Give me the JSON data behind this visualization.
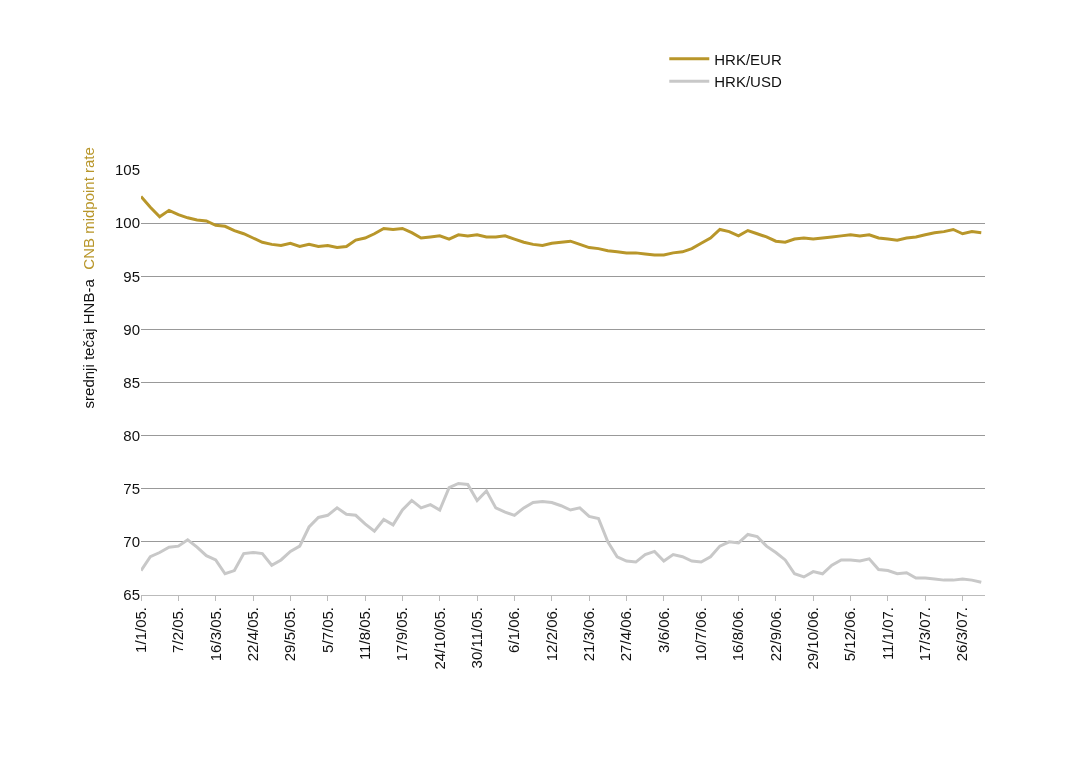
{
  "chart_data": {
    "type": "line",
    "ylabel": "srednji tečaj HNB-a",
    "annotations": [
      "CNB midpoint rate"
    ],
    "categories": [
      "1/1/05.",
      null,
      null,
      null,
      "7/2/05.",
      null,
      null,
      null,
      "16/3/05.",
      null,
      null,
      null,
      "22/4/05.",
      null,
      null,
      null,
      "29/5/05.",
      null,
      null,
      null,
      "5/7/05.",
      null,
      null,
      null,
      "11/8/05.",
      null,
      null,
      null,
      "17/9/05.",
      null,
      null,
      null,
      "24/10/05.",
      null,
      null,
      null,
      "30/11/05.",
      null,
      null,
      null,
      "6/1/06.",
      null,
      null,
      null,
      "12/2/06.",
      null,
      null,
      null,
      "21/3/06.",
      null,
      null,
      null,
      "27/4/06.",
      null,
      null,
      null,
      "3/6/06.",
      null,
      null,
      null,
      "10/7/06.",
      null,
      null,
      null,
      "16/8/06.",
      null,
      null,
      null,
      "22/9/06.",
      null,
      null,
      null,
      "29/10/06.",
      null,
      null,
      null,
      "5/12/06.",
      null,
      null,
      null,
      "11/1/07.",
      null,
      null,
      null,
      "17/3/07.",
      null,
      null,
      null,
      "26/3/07.",
      null,
      null
    ],
    "series": [
      {
        "name": "HRK/EUR",
        "color": "#b8962a",
        "values": [
          102.5,
          101.5,
          100.6,
          101.2,
          100.8,
          100.5,
          100.3,
          100.2,
          99.8,
          99.7,
          99.3,
          99.0,
          98.6,
          98.2,
          98.0,
          97.9,
          98.1,
          97.8,
          98.0,
          97.8,
          97.9,
          97.7,
          97.8,
          98.4,
          98.6,
          99.0,
          99.5,
          99.4,
          99.5,
          99.1,
          98.6,
          98.7,
          98.8,
          98.5,
          98.9,
          98.8,
          98.9,
          98.7,
          98.7,
          98.8,
          98.5,
          98.2,
          98.0,
          97.9,
          98.1,
          98.2,
          98.3,
          98.0,
          97.7,
          97.6,
          97.4,
          97.3,
          97.2,
          97.2,
          97.1,
          97.0,
          97.0,
          97.2,
          97.3,
          97.6,
          98.1,
          98.6,
          99.4,
          99.2,
          98.8,
          99.3,
          99.0,
          98.7,
          98.3,
          98.2,
          98.5,
          98.6,
          98.5,
          98.6,
          98.7,
          98.8,
          98.9,
          98.8,
          98.9,
          98.6,
          98.5,
          98.4,
          98.6,
          98.7,
          98.9,
          99.1,
          99.2,
          99.4,
          99.0,
          99.2,
          99.1
        ]
      },
      {
        "name": "HRK/USD",
        "color": "#c8c8c8",
        "values": [
          67.3,
          68.6,
          69.0,
          69.5,
          69.6,
          70.2,
          69.5,
          68.7,
          68.3,
          67.0,
          67.3,
          68.9,
          69.0,
          68.9,
          67.8,
          68.3,
          69.1,
          69.6,
          71.4,
          72.3,
          72.5,
          73.2,
          72.6,
          72.5,
          71.7,
          71.0,
          72.1,
          71.6,
          73.0,
          73.9,
          73.2,
          73.5,
          73.0,
          75.1,
          75.5,
          75.4,
          73.9,
          74.8,
          73.2,
          72.8,
          72.5,
          73.2,
          73.7,
          73.8,
          73.7,
          73.4,
          73.0,
          73.2,
          72.4,
          72.2,
          70.0,
          68.6,
          68.2,
          68.1,
          68.8,
          69.1,
          68.2,
          68.8,
          68.6,
          68.2,
          68.1,
          68.6,
          69.6,
          70.0,
          69.9,
          70.7,
          70.5,
          69.6,
          69.0,
          68.3,
          67.0,
          66.7,
          67.2,
          67.0,
          67.8,
          68.3,
          68.3,
          68.2,
          68.4,
          67.4,
          67.3,
          67.0,
          67.1,
          66.6,
          66.6,
          66.5,
          66.4,
          66.4,
          66.5,
          66.4,
          66.2
        ]
      }
    ],
    "ylim": [
      65,
      105
    ],
    "yticks": [
      65,
      70,
      75,
      80,
      85,
      90,
      95,
      100,
      105
    ],
    "grid": "y",
    "legend": "top right",
    "marker": "none",
    "line_style": "solid"
  }
}
